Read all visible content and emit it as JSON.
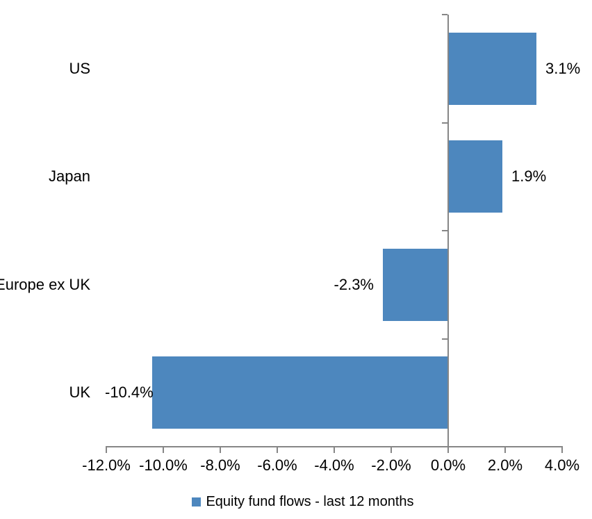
{
  "chart_data": {
    "type": "bar",
    "orientation": "horizontal",
    "legend": "Equity fund flows - last 12 months",
    "legend_position": "bottom",
    "categories": [
      "US",
      "Japan",
      "Europe ex UK",
      "UK"
    ],
    "values": [
      3.1,
      1.9,
      -2.3,
      -10.4
    ],
    "value_labels": [
      "3.1%",
      "1.9%",
      "-2.3%",
      "-10.4%"
    ],
    "xlim": [
      -12,
      4
    ],
    "x_ticks": [
      -12,
      -10,
      -8,
      -6,
      -4,
      -2,
      0,
      2,
      4
    ],
    "x_tick_labels": [
      "-12.0%",
      "-10.0%",
      "-8.0%",
      "-6.0%",
      "-4.0%",
      "-2.0%",
      "0.0%",
      "2.0%",
      "4.0%"
    ],
    "grid": false,
    "colors": {
      "bar": "#4D87BE",
      "axis": "#868686",
      "text": "#000000",
      "background": "#FFFFFF"
    }
  }
}
